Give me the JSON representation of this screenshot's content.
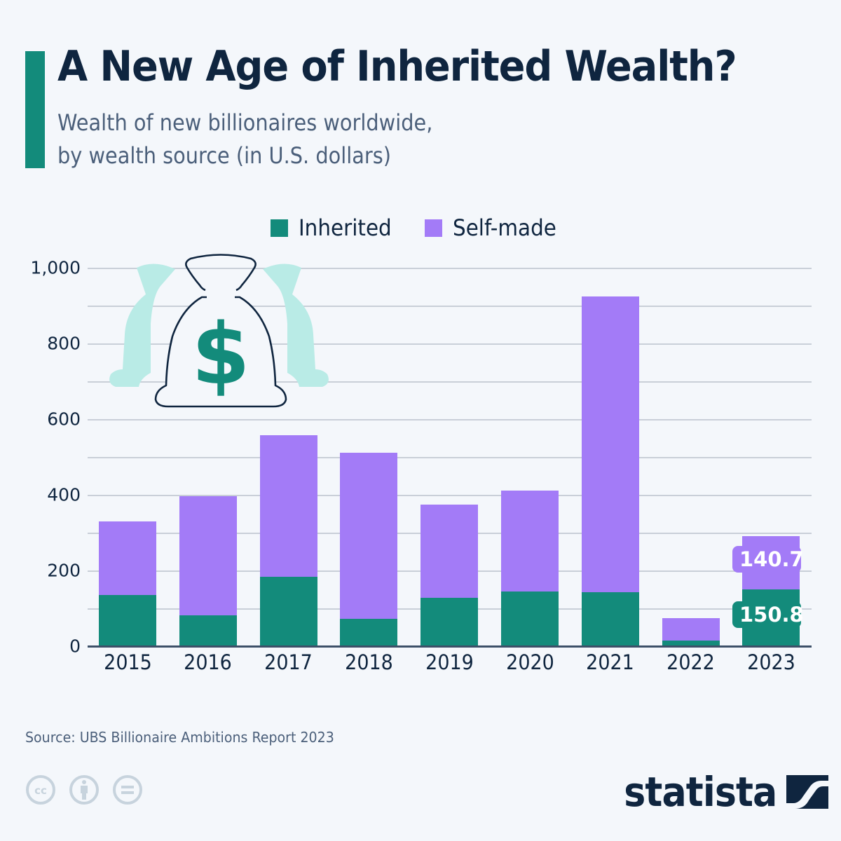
{
  "header": {
    "title": "A New Age of Inherited Wealth?",
    "subtitle_line1": "Wealth of new billionaires worldwide,",
    "subtitle_line2": "by wealth source (in U.S. dollars)"
  },
  "legend": {
    "items": [
      {
        "label": "Inherited",
        "color": "#138b7b"
      },
      {
        "label": "Self-made",
        "color": "#a37bf7"
      }
    ]
  },
  "yaxis": {
    "ticks": [
      "0",
      "200",
      "400",
      "600",
      "800",
      "1,000"
    ]
  },
  "xaxis": {
    "ticks": [
      "2015",
      "2016",
      "2017",
      "2018",
      "2019",
      "2020",
      "2021",
      "2022",
      "2023"
    ]
  },
  "labels": {
    "self_made_2023": "140.7",
    "inherited_2023": "150.8"
  },
  "illustration": {
    "icon": "money-bag-icon"
  },
  "footer": {
    "source": "Source: UBS Billionaire Ambitions Report 2023",
    "license_icons": [
      "cc-icon",
      "attribution-icon",
      "no-derivatives-icon"
    ],
    "logo": "statista"
  },
  "colors": {
    "inherited": "#138b7b",
    "self_made": "#a37bf7",
    "title": "#0f253f",
    "accent": "#138b7b",
    "background": "#f4f7fb"
  },
  "chart_data": {
    "type": "bar",
    "stacked": true,
    "title": "A New Age of Inherited Wealth?",
    "subtitle": "Wealth of new billionaires worldwide, by wealth source (in U.S. dollars)",
    "categories": [
      "2015",
      "2016",
      "2017",
      "2018",
      "2019",
      "2020",
      "2021",
      "2022",
      "2023"
    ],
    "series": [
      {
        "name": "Inherited",
        "color": "#138b7b",
        "values": [
          136,
          82,
          183,
          73,
          127,
          145,
          143,
          15,
          150.8
        ]
      },
      {
        "name": "Self-made",
        "color": "#a37bf7",
        "values": [
          194,
          315,
          374,
          439,
          248,
          267,
          782,
          59,
          140.7
        ]
      }
    ],
    "totals": [
      330,
      397,
      557,
      512,
      375,
      412,
      925,
      74,
      291.5
    ],
    "xlabel": "",
    "ylabel": "",
    "ylim": [
      0,
      1000
    ],
    "yticks": [
      0,
      200,
      400,
      600,
      800,
      1000
    ],
    "grid": true,
    "legend_position": "top",
    "annotations": [
      "140.7",
      "150.8"
    ],
    "source": "UBS Billionaire Ambitions Report 2023"
  }
}
